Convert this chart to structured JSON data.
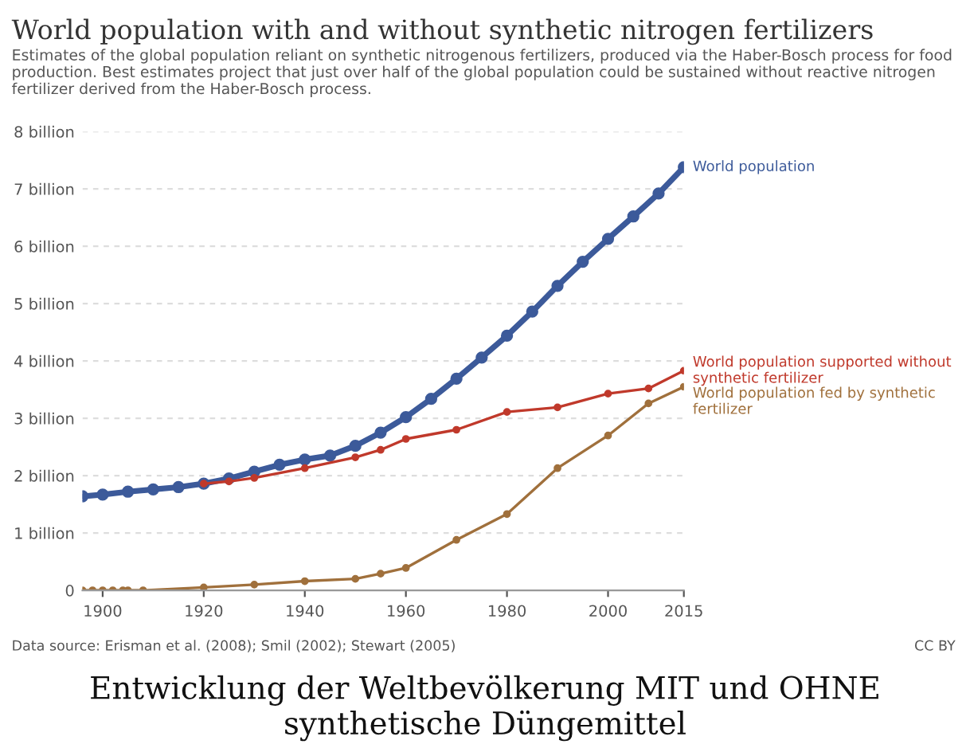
{
  "chart_data": {
    "type": "line",
    "title": "World population with and without synthetic nitrogen fertilizers",
    "subtitle": "Estimates of the global population reliant on synthetic nitrogenous fertilizers, produced via the Haber-Bosch process for food production. Best estimates project that just over half of the global population could be sustained without reactive nitrogen fertilizer derived from the Haber-Bosch process.",
    "series": [
      {
        "name": "World population",
        "color": "#3c5a9a",
        "x": [
          1896,
          1900,
          1905,
          1910,
          1915,
          1920,
          1925,
          1930,
          1935,
          1940,
          1945,
          1950,
          1955,
          1960,
          1965,
          1970,
          1975,
          1980,
          1985,
          1990,
          1995,
          2000,
          2005,
          2010,
          2015
        ],
        "values": [
          1.64,
          1.67,
          1.72,
          1.76,
          1.8,
          1.86,
          1.95,
          2.07,
          2.19,
          2.28,
          2.35,
          2.52,
          2.75,
          3.02,
          3.34,
          3.69,
          4.06,
          4.44,
          4.86,
          5.31,
          5.73,
          6.13,
          6.52,
          6.92,
          7.38
        ]
      },
      {
        "name": "World population supported without synthetic fertilizer",
        "color": "#c0392b",
        "x": [
          1920,
          1925,
          1930,
          1940,
          1950,
          1955,
          1960,
          1970,
          1980,
          1990,
          2000,
          2008,
          2015
        ],
        "values": [
          1.86,
          1.9,
          1.96,
          2.13,
          2.32,
          2.45,
          2.64,
          2.8,
          3.11,
          3.19,
          3.43,
          3.52,
          3.83
        ]
      },
      {
        "name": "World population fed by synthetic fertilizer",
        "color": "#a0703c",
        "x": [
          1896,
          1898,
          1900,
          1902,
          1904,
          1905,
          1908,
          1920,
          1930,
          1940,
          1950,
          1955,
          1960,
          1970,
          1980,
          1990,
          2000,
          2008,
          2015
        ],
        "values": [
          0,
          0,
          0,
          0,
          0,
          0,
          0,
          0.05,
          0.1,
          0.16,
          0.2,
          0.29,
          0.39,
          0.88,
          1.33,
          2.13,
          2.7,
          3.26,
          3.55
        ]
      }
    ],
    "xlim": [
      1896,
      2015
    ],
    "xticks": [
      1900,
      1920,
      1940,
      1960,
      1980,
      2000,
      2015
    ],
    "ylim": [
      0,
      8
    ],
    "yticks": [
      0,
      {
        "value": 1,
        "label": "1 billion"
      },
      {
        "value": 2,
        "label": "2 billion"
      },
      {
        "value": 3,
        "label": "3 billion"
      },
      {
        "value": 4,
        "label": "4 billion"
      },
      {
        "value": 5,
        "label": "5 billion"
      },
      {
        "value": 6,
        "label": "6 billion"
      },
      {
        "value": 7,
        "label": "7 billion"
      },
      {
        "value": 8,
        "label": "8 billion"
      }
    ],
    "grid": "y",
    "marker": "circle",
    "line_style": "solid",
    "annotations": [
      "Data source: Erisman et al. (2008); Smil (2002); Stewart (2005)",
      "CC BY",
      "Entwicklung der Weltbevölkerung MIT und OHNE synthetische Düngemittel"
    ]
  }
}
